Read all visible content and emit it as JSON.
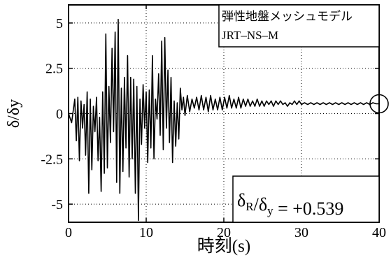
{
  "chart_data": {
    "type": "line",
    "xlabel": "時刻(s)",
    "ylabel": "δ/δy",
    "xlim": [
      0,
      40
    ],
    "ylim": [
      -6,
      6
    ],
    "x_ticks": [
      "0",
      "10",
      "20",
      "30",
      "40"
    ],
    "y_ticks": [
      "5",
      "2.5",
      "0",
      "-2.5",
      "-5"
    ],
    "grid": "dotted",
    "annotation_lines": [
      "弾性地盤メッシュモデル",
      "JRT–NS–M"
    ],
    "annotation_position": "top-right",
    "result": {
      "label_main": "δ",
      "label_sub": "R",
      "label_mid": "/δ",
      "label_sub2": "y",
      "equals": "=",
      "value": "+0.539"
    },
    "series": [
      {
        "x": [
          0.0,
          0.4,
          0.8,
          1.0,
          1.2,
          1.4,
          1.6,
          1.8,
          2.0,
          2.2,
          2.4,
          2.6,
          2.8,
          3.0,
          3.2,
          3.4,
          3.6,
          3.8,
          4.0,
          4.2,
          4.4,
          4.6,
          4.8,
          5.0,
          5.2,
          5.4,
          5.6,
          5.8,
          6.0,
          6.2,
          6.4,
          6.6,
          6.8,
          7.0,
          7.2,
          7.4,
          7.6,
          7.8,
          8.0,
          8.2,
          8.4,
          8.6,
          8.8,
          9.0,
          9.2,
          9.4,
          9.6,
          9.8,
          10.0,
          10.2,
          10.4,
          10.6,
          10.8,
          11.0,
          11.2,
          11.4,
          11.6,
          11.8,
          12.0,
          12.2,
          12.4,
          12.6,
          12.8,
          13.0,
          13.2,
          13.4,
          13.6,
          13.8,
          14.0,
          14.2,
          14.4,
          14.6,
          14.8,
          15.0,
          15.3,
          15.6,
          15.9,
          16.2,
          16.5,
          16.8,
          17.1,
          17.4,
          17.7,
          18.0,
          18.3,
          18.6,
          18.9,
          19.2,
          19.5,
          19.8,
          20.1,
          20.4,
          20.7,
          21.0,
          21.3,
          21.6,
          21.9,
          22.2,
          22.5,
          22.8,
          23.1,
          23.4,
          23.7,
          24.0,
          24.3,
          24.6,
          24.9,
          25.2,
          25.5,
          25.8,
          26.1,
          26.4,
          26.7,
          27.0,
          27.3,
          27.6,
          27.9,
          28.2,
          28.5,
          28.8,
          29.1,
          29.4,
          29.7,
          30.0,
          30.4,
          30.8,
          31.2,
          31.6,
          32.0,
          32.4,
          32.8,
          33.2,
          33.6,
          34.0,
          34.4,
          34.8,
          35.2,
          35.6,
          36.0,
          36.4,
          36.8,
          37.2,
          37.6,
          38.0,
          38.4,
          38.8,
          39.2,
          39.6,
          40.0
        ],
        "values": [
          0.0,
          -0.5,
          0.8,
          -1.5,
          0.9,
          -2.6,
          0.7,
          -0.8,
          0.5,
          -2.3,
          1.2,
          -4.4,
          0.8,
          -3.1,
          0.4,
          -1.0,
          0.9,
          -2.6,
          -0.2,
          -4.3,
          1.2,
          -3.3,
          4.4,
          -3.0,
          1.5,
          -1.6,
          3.6,
          -1.0,
          4.5,
          -3.8,
          5.2,
          -4.4,
          1.4,
          -3.2,
          2.0,
          -1.9,
          3.2,
          -3.5,
          2.0,
          -2.5,
          1.9,
          -4.4,
          1.5,
          -5.9,
          0.8,
          -1.7,
          1.6,
          -0.8,
          1.2,
          -2.7,
          1.3,
          -1.9,
          3.2,
          -2.5,
          0.8,
          -0.3,
          2.2,
          -1.2,
          4.0,
          -2.0,
          4.2,
          -0.8,
          2.4,
          -1.6,
          2.0,
          -2.7,
          0.7,
          -1.8,
          0.6,
          -1.4,
          1.4,
          0.2,
          0.9,
          -0.1,
          1.0,
          0.1,
          0.8,
          0.3,
          0.9,
          0.2,
          1.0,
          0.2,
          0.9,
          0.1,
          1.0,
          0.2,
          0.8,
          0.2,
          0.9,
          0.2,
          0.9,
          0.3,
          1.0,
          0.3,
          0.8,
          0.3,
          0.9,
          0.3,
          0.8,
          0.4,
          0.8,
          0.4,
          0.7,
          0.4,
          0.8,
          0.4,
          0.7,
          0.4,
          0.7,
          0.5,
          0.7,
          0.4,
          0.7,
          0.5,
          0.7,
          0.5,
          0.6,
          0.4,
          0.6,
          0.5,
          0.7,
          0.5,
          0.7,
          0.5,
          0.6,
          0.5,
          0.6,
          0.5,
          0.6,
          0.5,
          0.6,
          0.5,
          0.6,
          0.5,
          0.6,
          0.5,
          0.6,
          0.5,
          0.6,
          0.5,
          0.6,
          0.5,
          0.6,
          0.5,
          0.6,
          0.5,
          0.6,
          0.54,
          0.54
        ]
      }
    ]
  }
}
